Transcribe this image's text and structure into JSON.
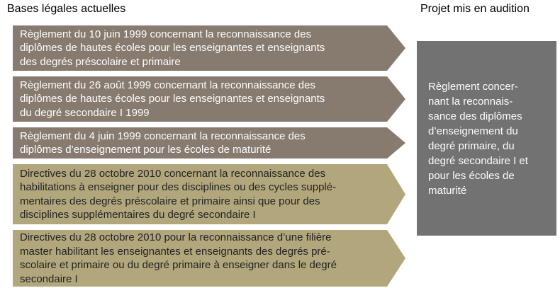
{
  "colors": {
    "background": "#ffffff",
    "arrow_taupe": "#877b6f",
    "arrow_khaki": "#b2a77c",
    "project_box_gray": "#727272",
    "text_on_taupe": "#fdfdfc",
    "text_on_khaki": "#222222",
    "title_text": "#000000"
  },
  "left": {
    "title": "Bases légales actuelles",
    "arrows": [
      {
        "style": "taupe",
        "lines": [
          "Règlement du 10 juin 1999 concernant la reconnaissance des",
          "diplômes de hautes écoles pour les enseignantes et enseignants",
          "des degrés préscolaire et primaire"
        ]
      },
      {
        "style": "taupe",
        "lines": [
          "Règlement du 26 août 1999 concernant la reconnaissance des",
          "diplômes de hautes écoles pour les enseignantes et enseignants",
          "du degré secondaire I 1999"
        ]
      },
      {
        "style": "taupe",
        "lines": [
          "Règlement du 4 juin 1999 concernant la reconnaissance des",
          "diplômes d’enseignement pour les écoles de maturité"
        ]
      },
      {
        "style": "khaki",
        "lines": [
          "Directives du 28 octobre 2010 concernant la reconnaissance des",
          "habilitations à enseigner pour des disciplines ou des cycles supplé-",
          "mentaires des degrés préscolaire et primaire ainsi que pour des",
          "disciplines supplémentaires du degré secondaire I"
        ]
      },
      {
        "style": "khaki",
        "lines": [
          "Directives du 28 octobre 2010 pour la reconnaissance d’une filière",
          "master habilitant les enseignantes et enseignants des degrés pré-",
          "scolaire et primaire ou du degré primaire à enseigner dans le degré",
          "secondaire I"
        ]
      }
    ]
  },
  "right": {
    "title": "Projet mis en audition",
    "box": {
      "lines": [
        "Règlement concer-",
        "nant la reconnais-",
        "sance des diplômes",
        "d’enseignement du",
        "degré primaire, du",
        "degré secondaire I et",
        "pour les écoles de",
        "maturité"
      ]
    }
  }
}
